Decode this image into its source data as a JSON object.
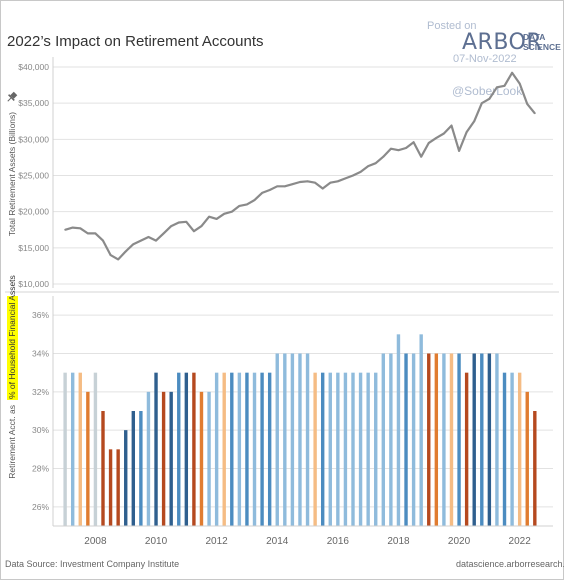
{
  "header": {
    "title": "2022’s Impact on Retirement Accounts",
    "watermark_posted": "Posted on",
    "watermark_date": "07-Nov-2022",
    "watermark_handle": "@SoberLook",
    "logo_main": "ARBOR",
    "logo_sub1": "DATA",
    "logo_sub2": "SCIENCE",
    "pin_icon": "pushpin-icon"
  },
  "footer": {
    "source": "Data Source: Investment Company Institute",
    "site": "datascience.arborresearch.com"
  },
  "colors": {
    "line": "#8a8a8a",
    "grid": "#e2e2e2",
    "axis_text": "#888888",
    "highlight": "#ffff00",
    "bar_palette": [
      "#c7d1d6",
      "#8fbbdc",
      "#4c8cc0",
      "#2f5f8e",
      "#f5bc84",
      "#e07c30",
      "#b5491f"
    ]
  },
  "chart_data": [
    {
      "type": "line",
      "title": "",
      "xlabel": "",
      "ylabel": "Total Retirement Assets (Billions)",
      "ylim": [
        10000,
        40000
      ],
      "yticks": [
        10000,
        15000,
        20000,
        25000,
        30000,
        35000,
        40000
      ],
      "ytick_labels": [
        "$10,000",
        "$15,000",
        "$20,000",
        "$25,000",
        "$30,000",
        "$35,000",
        "$40,000"
      ],
      "xlim": [
        2006.6,
        2023.1
      ],
      "grid": true,
      "series": [
        {
          "x": [
            2007.0,
            2007.25,
            2007.5,
            2007.75,
            2008.0,
            2008.25,
            2008.5,
            2008.75,
            2009.0,
            2009.25,
            2009.5,
            2009.75,
            2010.0,
            2010.25,
            2010.5,
            2010.75,
            2011.0,
            2011.25,
            2011.5,
            2011.75,
            2012.0,
            2012.25,
            2012.5,
            2012.75,
            2013.0,
            2013.25,
            2013.5,
            2013.75,
            2014.0,
            2014.25,
            2014.5,
            2014.75,
            2015.0,
            2015.25,
            2015.5,
            2015.75,
            2016.0,
            2016.25,
            2016.5,
            2016.75,
            2017.0,
            2017.25,
            2017.5,
            2017.75,
            2018.0,
            2018.25,
            2018.5,
            2018.75,
            2019.0,
            2019.25,
            2019.5,
            2019.75,
            2020.0,
            2020.25,
            2020.5,
            2020.75,
            2021.0,
            2021.25,
            2021.5,
            2021.75,
            2022.0,
            2022.25,
            2022.5
          ],
          "y": [
            17500,
            17800,
            17700,
            17000,
            17000,
            16000,
            14000,
            13400,
            14500,
            15500,
            16000,
            16500,
            16000,
            17000,
            18000,
            18500,
            18600,
            17300,
            18000,
            19300,
            19000,
            19700,
            20000,
            20800,
            21000,
            21600,
            22600,
            23000,
            23500,
            23500,
            23800,
            24100,
            24200,
            24000,
            23200,
            24000,
            24200,
            24600,
            25000,
            25500,
            26300,
            26700,
            27600,
            28700,
            28500,
            28800,
            29600,
            27600,
            29500,
            30200,
            30800,
            31900,
            28400,
            31000,
            32500,
            35000,
            35600,
            37200,
            37400,
            39200,
            37700,
            34900,
            33600
          ]
        }
      ]
    },
    {
      "type": "bar",
      "title": "",
      "ylabel": "Retirement Acct. as % of Household Financial Assets",
      "ylabel_plain": "Retirement Acct. as",
      "ylabel_highlight": "% of Household Financial Assets",
      "ylim": [
        25,
        37
      ],
      "yticks": [
        26,
        28,
        30,
        32,
        34,
        36
      ],
      "ytick_labels": [
        "26%",
        "28%",
        "30%",
        "32%",
        "34%",
        "36%"
      ],
      "xticks": [
        2008,
        2010,
        2012,
        2014,
        2016,
        2018,
        2020,
        2022
      ],
      "xtick_labels": [
        "2008",
        "2010",
        "2012",
        "2014",
        "2016",
        "2018",
        "2020",
        "2022"
      ],
      "grid": true,
      "x": [
        2007.0,
        2007.25,
        2007.5,
        2007.75,
        2008.0,
        2008.25,
        2008.5,
        2008.75,
        2009.0,
        2009.25,
        2009.5,
        2009.75,
        2010.0,
        2010.25,
        2010.5,
        2010.75,
        2011.0,
        2011.25,
        2011.5,
        2011.75,
        2012.0,
        2012.25,
        2012.5,
        2012.75,
        2013.0,
        2013.25,
        2013.5,
        2013.75,
        2014.0,
        2014.25,
        2014.5,
        2014.75,
        2015.0,
        2015.25,
        2015.5,
        2015.75,
        2016.0,
        2016.25,
        2016.5,
        2016.75,
        2017.0,
        2017.25,
        2017.5,
        2017.75,
        2018.0,
        2018.25,
        2018.5,
        2018.75,
        2019.0,
        2019.25,
        2019.5,
        2019.75,
        2020.0,
        2020.25,
        2020.5,
        2020.75,
        2021.0,
        2021.25,
        2021.5,
        2021.75,
        2022.0,
        2022.25,
        2022.5
      ],
      "values": [
        33,
        33,
        33,
        32,
        33,
        31,
        29,
        29,
        30,
        31,
        31,
        32,
        33,
        32,
        32,
        33,
        33,
        33,
        32,
        32,
        33,
        33,
        33,
        33,
        33,
        33,
        33,
        33,
        34,
        34,
        34,
        34,
        34,
        33,
        33,
        33,
        33,
        33,
        33,
        33,
        33,
        33,
        34,
        34,
        35,
        34,
        34,
        35,
        34,
        34,
        34,
        34,
        34,
        33,
        34,
        34,
        34,
        34,
        33,
        33,
        33,
        32,
        31
      ],
      "colors": [
        "#c7d1d6",
        "#8fbbdc",
        "#f5bc84",
        "#e07c30",
        "#c7d1d6",
        "#b5491f",
        "#b5491f",
        "#b5491f",
        "#2f5f8e",
        "#2f5f8e",
        "#4c8cc0",
        "#8fbbdc",
        "#2f5f8e",
        "#b5491f",
        "#2f5f8e",
        "#4c8cc0",
        "#2f5f8e",
        "#b5491f",
        "#e07c30",
        "#8fbbdc",
        "#8fbbdc",
        "#f5bc84",
        "#4c8cc0",
        "#8fbbdc",
        "#4c8cc0",
        "#8fbbdc",
        "#4c8cc0",
        "#4c8cc0",
        "#8fbbdc",
        "#8fbbdc",
        "#8fbbdc",
        "#8fbbdc",
        "#8fbbdc",
        "#f5bc84",
        "#4c8cc0",
        "#8fbbdc",
        "#8fbbdc",
        "#8fbbdc",
        "#8fbbdc",
        "#8fbbdc",
        "#8fbbdc",
        "#8fbbdc",
        "#8fbbdc",
        "#8fbbdc",
        "#8fbbdc",
        "#4c8cc0",
        "#8fbbdc",
        "#8fbbdc",
        "#b5491f",
        "#e07c30",
        "#8fbbdc",
        "#f5bc84",
        "#4c8cc0",
        "#b5491f",
        "#2f5f8e",
        "#4c8cc0",
        "#2f5f8e",
        "#8fbbdc",
        "#4c8cc0",
        "#8fbbdc",
        "#f5bc84",
        "#e07c30",
        "#b5491f"
      ]
    }
  ]
}
